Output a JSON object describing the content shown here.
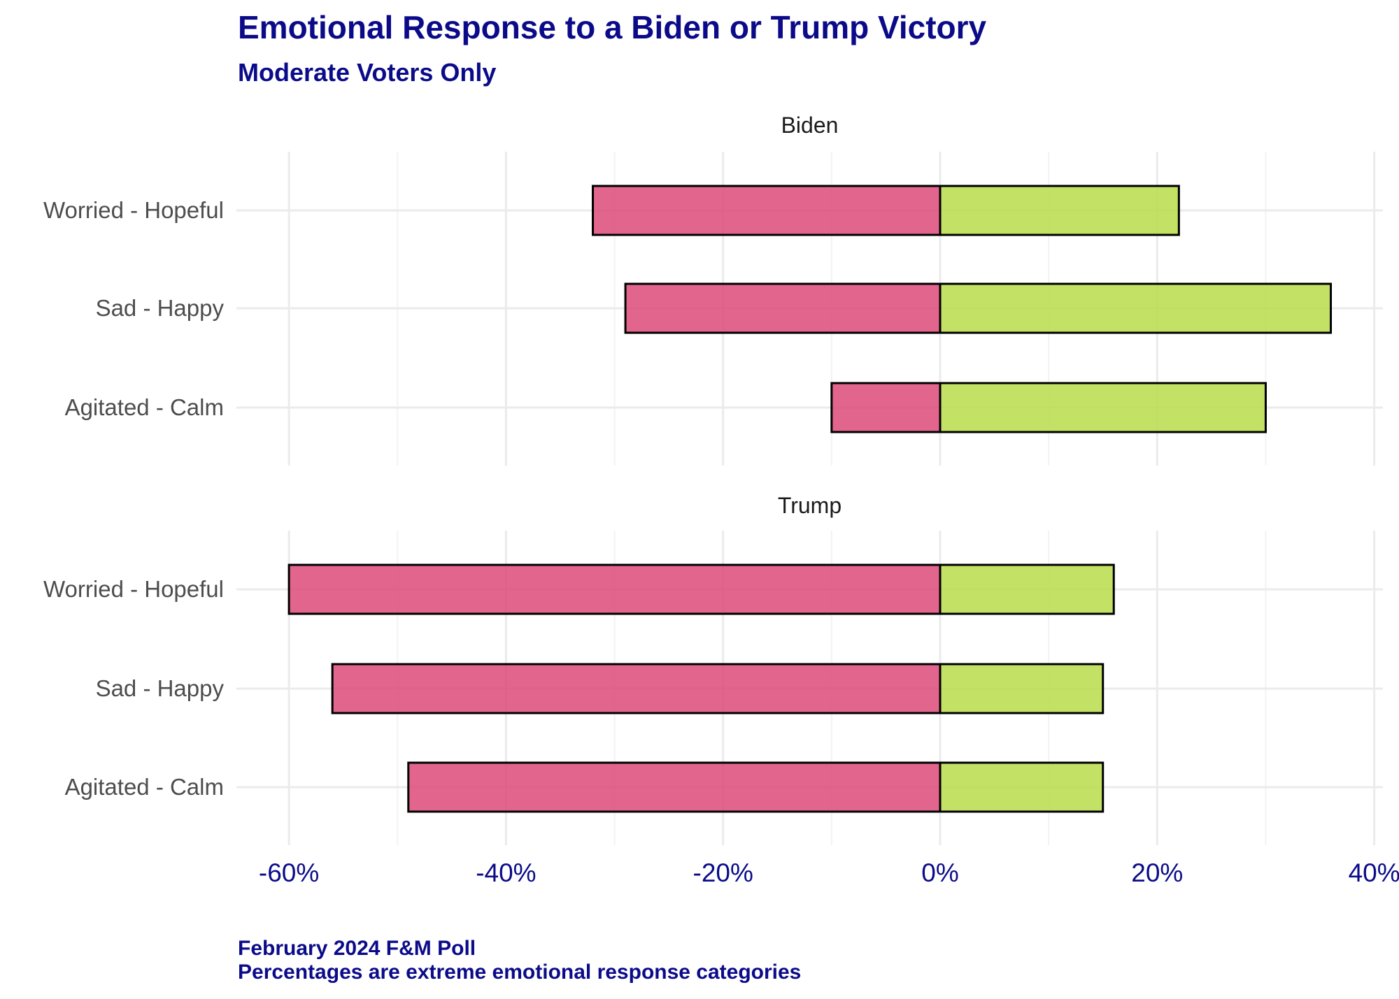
{
  "chart_data": {
    "type": "bar",
    "orientation": "horizontal",
    "stacked": "diverging",
    "title": "Emotional Response to a Biden or Trump Victory",
    "subtitle": "Moderate Voters Only",
    "caption": [
      "February 2024 F&M Poll",
      "Percentages are extreme emotional response categories"
    ],
    "categories": [
      "Worried - Hopeful",
      "Sad - Happy",
      "Agitated - Calm"
    ],
    "xlim": [
      -65,
      41
    ],
    "x_ticks": [
      -60,
      -40,
      -20,
      0,
      20,
      40
    ],
    "x_tick_labels": [
      "-60%",
      "-40%",
      "-20%",
      "0%",
      "20%",
      "40%"
    ],
    "grid": true,
    "colors": {
      "negative": "#dc4a78",
      "positive": "#b9dc4a"
    },
    "panels": [
      {
        "name": "Biden",
        "negative": [
          -32,
          -29,
          -10
        ],
        "positive": [
          22,
          36,
          30
        ]
      },
      {
        "name": "Trump",
        "negative": [
          -60,
          -56,
          -49
        ],
        "positive": [
          16,
          15,
          15
        ]
      }
    ]
  }
}
